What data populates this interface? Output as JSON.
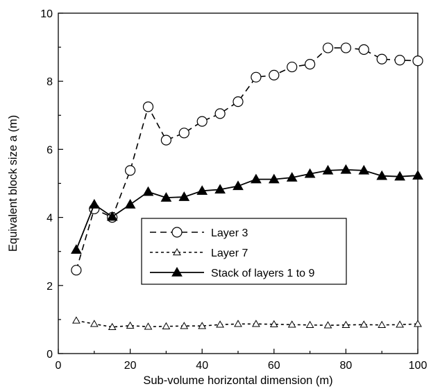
{
  "chart_data": {
    "type": "line",
    "xlabel": "Sub-volume horizontal dimension (m)",
    "ylabel": "Equivalent block size a (m)",
    "xlim": [
      0,
      100
    ],
    "ylim": [
      0,
      10
    ],
    "x_ticks": [
      0,
      20,
      40,
      60,
      80,
      100
    ],
    "y_ticks": [
      0,
      2,
      4,
      6,
      8,
      10
    ],
    "grid": false,
    "legend_position": "center-left",
    "series": [
      {
        "name": "Layer 3",
        "line_style": "dashed",
        "marker": "open-circle",
        "color": "#000000",
        "x": [
          5,
          10,
          15,
          20,
          25,
          30,
          35,
          40,
          45,
          50,
          55,
          60,
          65,
          70,
          75,
          80,
          85,
          90,
          95,
          100
        ],
        "y": [
          2.45,
          4.25,
          4.0,
          5.38,
          7.25,
          6.27,
          6.48,
          6.82,
          7.05,
          7.4,
          8.12,
          8.18,
          8.42,
          8.5,
          8.98,
          8.98,
          8.93,
          8.65,
          8.62,
          8.6
        ]
      },
      {
        "name": "Layer 7",
        "line_style": "dotted",
        "marker": "open-triangle",
        "color": "#000000",
        "x": [
          5,
          10,
          15,
          20,
          25,
          30,
          35,
          40,
          45,
          50,
          55,
          60,
          65,
          70,
          75,
          80,
          85,
          90,
          95,
          100
        ],
        "y": [
          0.97,
          0.87,
          0.78,
          0.82,
          0.79,
          0.8,
          0.81,
          0.81,
          0.85,
          0.87,
          0.87,
          0.86,
          0.85,
          0.84,
          0.83,
          0.84,
          0.85,
          0.84,
          0.85,
          0.87
        ]
      },
      {
        "name": "Stack of layers 1 to 9",
        "line_style": "solid",
        "marker": "filled-triangle",
        "color": "#000000",
        "x": [
          5,
          10,
          15,
          20,
          25,
          30,
          35,
          40,
          45,
          50,
          55,
          60,
          65,
          70,
          75,
          80,
          85,
          90,
          95,
          100
        ],
        "y": [
          3.05,
          4.38,
          4.02,
          4.38,
          4.75,
          4.58,
          4.6,
          4.78,
          4.82,
          4.92,
          5.12,
          5.12,
          5.17,
          5.28,
          5.38,
          5.4,
          5.38,
          5.22,
          5.2,
          5.23
        ]
      }
    ]
  }
}
